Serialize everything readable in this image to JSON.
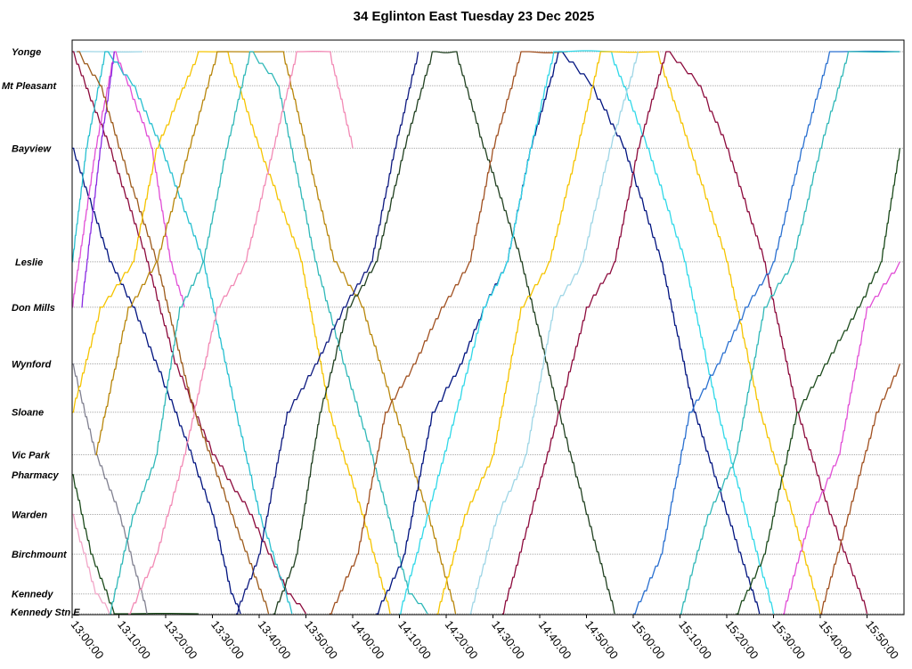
{
  "chart_data": {
    "type": "line",
    "title": "34 Eglinton East Tuesday 23 Dec 2025",
    "xlabel": "",
    "ylabel": "",
    "x_range": [
      "13:00:00",
      "15:57:00"
    ],
    "x_ticks": [
      "13:00:00",
      "13:10:00",
      "13:20:00",
      "13:30:00",
      "13:40:00",
      "13:50:00",
      "14:00:00",
      "14:10:00",
      "14:20:00",
      "14:30:00",
      "14:40:00",
      "14:50:00",
      "15:00:00",
      "15:10:00",
      "15:20:00",
      "15:30:00",
      "15:40:00",
      "15:50:00"
    ],
    "y_axis": "stop position along route (km from Yonge)",
    "grid": true,
    "legend": "none",
    "stops": [
      {
        "name": "Yonge",
        "pos": 0.8
      },
      {
        "name": "Mt Pleasant",
        "pos": 2.0
      },
      {
        "name": "Bayview",
        "pos": 4.2
      },
      {
        "name": "Leslie",
        "pos": 8.2
      },
      {
        "name": "Don Mills",
        "pos": 9.8
      },
      {
        "name": "Wynford",
        "pos": 11.8
      },
      {
        "name": "Sloane",
        "pos": 13.5
      },
      {
        "name": "Vic Park",
        "pos": 15.0
      },
      {
        "name": "Pharmacy",
        "pos": 15.7
      },
      {
        "name": "Warden",
        "pos": 17.1
      },
      {
        "name": "Birchmount",
        "pos": 18.5
      },
      {
        "name": "Kennedy",
        "pos": 19.9
      },
      {
        "name": "Kennedy Stn E",
        "pos": 20.6
      }
    ],
    "series": [
      {
        "color": "#00137f",
        "points": [
          [
            "13:00",
            "Bayview"
          ],
          [
            "13:08",
            "Leslie"
          ],
          [
            "13:13",
            "Don Mills"
          ],
          [
            "13:22",
            "Sloane"
          ],
          [
            "13:30",
            "Warden"
          ],
          [
            "13:34",
            "Kennedy"
          ],
          [
            "13:36",
            "Kennedy Stn E"
          ]
        ]
      },
      {
        "color": "#1b4a1b",
        "points": [
          [
            "13:00",
            "Pharmacy"
          ],
          [
            "13:04",
            "Birchmount"
          ],
          [
            "13:09",
            "Kennedy Stn E"
          ],
          [
            "13:27",
            "Kennedy Stn E"
          ]
        ]
      },
      {
        "color": "#f2a7c8",
        "points": [
          [
            "13:00",
            "Warden"
          ],
          [
            "13:05",
            "Kennedy"
          ],
          [
            "13:08",
            "Kennedy Stn E"
          ]
        ]
      },
      {
        "color": "#808090",
        "points": [
          [
            "13:00",
            "Wynford"
          ],
          [
            "13:05",
            "Vic Park"
          ],
          [
            "13:10",
            "Warden"
          ],
          [
            "13:16",
            "Kennedy Stn E"
          ]
        ]
      },
      {
        "color": "#9fd6e6",
        "points": [
          [
            "13:00",
            "Yonge"
          ],
          [
            "13:05",
            "Yonge"
          ],
          [
            "13:15",
            "Yonge"
          ]
        ]
      },
      {
        "color": "#8c0a3c",
        "points": [
          [
            "13:00",
            "Yonge"
          ],
          [
            "13:08",
            "Bayview"
          ],
          [
            "13:16",
            "Leslie"
          ],
          [
            "13:22",
            "Wynford"
          ],
          [
            "13:30",
            "Vic Park"
          ],
          [
            "13:38",
            "Warden"
          ],
          [
            "13:46",
            "Kennedy"
          ],
          [
            "13:50",
            "Kennedy Stn E"
          ]
        ]
      },
      {
        "color": "#e14fd6",
        "points": [
          [
            "13:00",
            "Don Mills"
          ],
          [
            "13:05",
            "Bayview"
          ],
          [
            "13:09",
            "Yonge"
          ],
          [
            "13:12",
            "Mt Pleasant"
          ],
          [
            "13:17",
            "Bayview"
          ],
          [
            "13:21",
            "Leslie"
          ],
          [
            "13:24",
            "Don Mills"
          ]
        ]
      },
      {
        "color": "#8a2be2",
        "points": [
          [
            "13:02",
            "Don Mills"
          ],
          [
            "13:06",
            "Bayview"
          ],
          [
            "13:09",
            "Yonge"
          ]
        ]
      },
      {
        "color": "#28c0d0",
        "points": [
          [
            "13:00",
            "Leslie"
          ],
          [
            "13:03",
            "Bayview"
          ],
          [
            "13:07",
            "Yonge"
          ],
          [
            "13:13",
            "Mt Pleasant"
          ],
          [
            "13:19",
            "Bayview"
          ],
          [
            "13:28",
            "Leslie"
          ],
          [
            "13:35",
            "Sloane"
          ],
          [
            "13:40",
            "Warden"
          ],
          [
            "13:47",
            "Kennedy Stn E"
          ]
        ]
      },
      {
        "color": "#9c5a1a",
        "points": [
          [
            "13:01",
            "Yonge"
          ],
          [
            "13:06",
            "Mt Pleasant"
          ],
          [
            "13:10",
            "Bayview"
          ],
          [
            "13:18",
            "Leslie"
          ],
          [
            "13:26",
            "Sloane"
          ],
          [
            "13:34",
            "Warden"
          ],
          [
            "13:42",
            "Kennedy Stn E"
          ]
        ]
      },
      {
        "color": "#f5c400",
        "points": [
          [
            "13:00",
            "Sloane"
          ],
          [
            "13:06",
            "Don Mills"
          ],
          [
            "13:13",
            "Leslie"
          ],
          [
            "13:18",
            "Bayview"
          ],
          [
            "13:27",
            "Yonge"
          ],
          [
            "13:33",
            "Yonge"
          ],
          [
            "13:40",
            "Bayview"
          ],
          [
            "13:49",
            "Leslie"
          ],
          [
            "13:55",
            "Sloane"
          ],
          [
            "14:02",
            "Warden"
          ],
          [
            "14:08",
            "Kennedy Stn E"
          ]
        ]
      },
      {
        "color": "#b8860b",
        "points": [
          [
            "13:05",
            "Vic Park"
          ],
          [
            "13:12",
            "Don Mills"
          ],
          [
            "13:18",
            "Leslie"
          ],
          [
            "13:25",
            "Bayview"
          ],
          [
            "13:31",
            "Yonge"
          ],
          [
            "13:45",
            "Yonge"
          ],
          [
            "13:50",
            "Bayview"
          ],
          [
            "13:56",
            "Leslie"
          ],
          [
            "14:02",
            "Don Mills"
          ],
          [
            "14:09",
            "Sloane"
          ],
          [
            "14:16",
            "Warden"
          ],
          [
            "14:22",
            "Kennedy Stn E"
          ]
        ]
      },
      {
        "color": "#30b8b8",
        "points": [
          [
            "13:08",
            "Kennedy Stn E"
          ],
          [
            "13:13",
            "Warden"
          ],
          [
            "13:18",
            "Vic Park"
          ],
          [
            "13:23",
            "Don Mills"
          ],
          [
            "13:28",
            "Leslie"
          ],
          [
            "13:33",
            "Bayview"
          ],
          [
            "13:38",
            "Yonge"
          ],
          [
            "13:44",
            "Mt Pleasant"
          ],
          [
            "13:52",
            "Leslie"
          ],
          [
            "13:58",
            "Wynford"
          ],
          [
            "14:04",
            "Vic Park"
          ],
          [
            "14:12",
            "Kennedy"
          ],
          [
            "14:16",
            "Kennedy Stn E"
          ]
        ]
      },
      {
        "color": "#f28ab5",
        "points": [
          [
            "13:12",
            "Kennedy Stn E"
          ],
          [
            "13:18",
            "Birchmount"
          ],
          [
            "13:24",
            "Vic Park"
          ],
          [
            "13:31",
            "Don Mills"
          ],
          [
            "13:37",
            "Leslie"
          ],
          [
            "13:43",
            "Bayview"
          ],
          [
            "13:48",
            "Yonge"
          ],
          [
            "13:55",
            "Yonge"
          ],
          [
            "14:00",
            "Bayview"
          ]
        ]
      },
      {
        "color": "#0e1a80",
        "points": [
          [
            "13:35",
            "Kennedy Stn E"
          ],
          [
            "13:40",
            "Birchmount"
          ],
          [
            "13:46",
            "Sloane"
          ],
          [
            "13:52",
            "Wynford"
          ],
          [
            "13:58",
            "Don Mills"
          ],
          [
            "14:04",
            "Leslie"
          ],
          [
            "14:09",
            "Bayview"
          ],
          [
            "14:14",
            "Yonge"
          ]
        ]
      },
      {
        "color": "#204020",
        "points": [
          [
            "13:43",
            "Kennedy Stn E"
          ],
          [
            "13:48",
            "Birchmount"
          ],
          [
            "13:53",
            "Sloane"
          ],
          [
            "13:59",
            "Don Mills"
          ],
          [
            "14:05",
            "Leslie"
          ],
          [
            "14:11",
            "Bayview"
          ],
          [
            "14:17",
            "Yonge"
          ],
          [
            "14:22",
            "Yonge"
          ],
          [
            "14:28",
            "Bayview"
          ],
          [
            "14:36",
            "Leslie"
          ],
          [
            "14:44",
            "Sloane"
          ],
          [
            "14:50",
            "Warden"
          ],
          [
            "14:56",
            "Kennedy Stn E"
          ]
        ]
      },
      {
        "color": "#a05020",
        "points": [
          [
            "13:55",
            "Kennedy Stn E"
          ],
          [
            "14:01",
            "Birchmount"
          ],
          [
            "14:07",
            "Sloane"
          ],
          [
            "14:13",
            "Wynford"
          ],
          [
            "14:19",
            "Don Mills"
          ],
          [
            "14:25",
            "Leslie"
          ],
          [
            "14:30",
            "Bayview"
          ],
          [
            "14:36",
            "Yonge"
          ],
          [
            "14:46",
            "Yonge"
          ]
        ]
      },
      {
        "color": "#00137f",
        "points": [
          [
            "14:05",
            "Kennedy Stn E"
          ],
          [
            "14:11",
            "Birchmount"
          ],
          [
            "14:17",
            "Sloane"
          ],
          [
            "14:23",
            "Wynford"
          ],
          [
            "14:28",
            "Don Mills"
          ],
          [
            "14:33",
            "Leslie"
          ],
          [
            "14:38",
            "Bayview"
          ],
          [
            "14:44",
            "Yonge"
          ],
          [
            "14:51",
            "Mt Pleasant"
          ],
          [
            "14:58",
            "Bayview"
          ],
          [
            "15:06",
            "Leslie"
          ],
          [
            "15:13",
            "Sloane"
          ],
          [
            "15:20",
            "Warden"
          ],
          [
            "15:27",
            "Kennedy Stn E"
          ]
        ]
      },
      {
        "color": "#2fd8e8",
        "points": [
          [
            "14:10",
            "Kennedy Stn E"
          ],
          [
            "14:16",
            "Warden"
          ],
          [
            "14:22",
            "Sloane"
          ],
          [
            "14:28",
            "Don Mills"
          ],
          [
            "14:33",
            "Leslie"
          ],
          [
            "14:38",
            "Bayview"
          ],
          [
            "14:43",
            "Yonge"
          ],
          [
            "14:55",
            "Yonge"
          ],
          [
            "15:03",
            "Bayview"
          ],
          [
            "15:11",
            "Leslie"
          ],
          [
            "15:18",
            "Sloane"
          ],
          [
            "15:24",
            "Warden"
          ],
          [
            "15:30",
            "Kennedy Stn E"
          ]
        ]
      },
      {
        "color": "#f5c400",
        "points": [
          [
            "14:18",
            "Kennedy Stn E"
          ],
          [
            "14:24",
            "Warden"
          ],
          [
            "14:30",
            "Vic Park"
          ],
          [
            "14:36",
            "Don Mills"
          ],
          [
            "14:42",
            "Leslie"
          ],
          [
            "14:48",
            "Bayview"
          ],
          [
            "14:53",
            "Yonge"
          ],
          [
            "15:05",
            "Yonge"
          ],
          [
            "15:12",
            "Bayview"
          ],
          [
            "15:20",
            "Leslie"
          ],
          [
            "15:27",
            "Sloane"
          ],
          [
            "15:34",
            "Warden"
          ],
          [
            "15:40",
            "Kennedy Stn E"
          ]
        ]
      },
      {
        "color": "#9fd6e6",
        "points": [
          [
            "14:25",
            "Kennedy Stn E"
          ],
          [
            "14:31",
            "Warden"
          ],
          [
            "14:37",
            "Vic Park"
          ],
          [
            "14:43",
            "Don Mills"
          ],
          [
            "14:49",
            "Leslie"
          ],
          [
            "14:55",
            "Bayview"
          ],
          [
            "15:01",
            "Yonge"
          ]
        ]
      },
      {
        "color": "#8c0a3c",
        "points": [
          [
            "14:32",
            "Kennedy Stn E"
          ],
          [
            "14:38",
            "Warden"
          ],
          [
            "14:44",
            "Sloane"
          ],
          [
            "14:50",
            "Don Mills"
          ],
          [
            "14:56",
            "Leslie"
          ],
          [
            "15:01",
            "Bayview"
          ],
          [
            "15:07",
            "Yonge"
          ],
          [
            "15:14",
            "Mt Pleasant"
          ],
          [
            "15:20",
            "Bayview"
          ],
          [
            "15:28",
            "Leslie"
          ],
          [
            "15:35",
            "Sloane"
          ],
          [
            "15:42",
            "Warden"
          ],
          [
            "15:50",
            "Kennedy Stn E"
          ]
        ]
      },
      {
        "color": "#2a70d0",
        "points": [
          [
            "15:00",
            "Kennedy Stn E"
          ],
          [
            "15:06",
            "Birchmount"
          ],
          [
            "15:12",
            "Sloane"
          ],
          [
            "15:18",
            "Wynford"
          ],
          [
            "15:24",
            "Don Mills"
          ],
          [
            "15:30",
            "Leslie"
          ],
          [
            "15:36",
            "Bayview"
          ],
          [
            "15:42",
            "Yonge"
          ],
          [
            "15:57",
            "Yonge"
          ]
        ]
      },
      {
        "color": "#30b8b8",
        "points": [
          [
            "15:10",
            "Kennedy Stn E"
          ],
          [
            "15:16",
            "Warden"
          ],
          [
            "15:22",
            "Vic Park"
          ],
          [
            "15:28",
            "Don Mills"
          ],
          [
            "15:34",
            "Leslie"
          ],
          [
            "15:40",
            "Bayview"
          ],
          [
            "15:46",
            "Yonge"
          ],
          [
            "15:57",
            "Yonge"
          ]
        ]
      },
      {
        "color": "#1b4a1b",
        "points": [
          [
            "15:22",
            "Kennedy Stn E"
          ],
          [
            "15:28",
            "Birchmount"
          ],
          [
            "15:35",
            "Sloane"
          ],
          [
            "15:41",
            "Wynford"
          ],
          [
            "15:48",
            "Don Mills"
          ],
          [
            "15:53",
            "Leslie"
          ],
          [
            "15:57",
            "Bayview"
          ]
        ]
      },
      {
        "color": "#e14fd6",
        "points": [
          [
            "15:32",
            "Kennedy Stn E"
          ],
          [
            "15:38",
            "Warden"
          ],
          [
            "15:44",
            "Vic Park"
          ],
          [
            "15:50",
            "Don Mills"
          ],
          [
            "15:57",
            "Leslie"
          ]
        ]
      },
      {
        "color": "#a05020",
        "points": [
          [
            "15:40",
            "Kennedy Stn E"
          ],
          [
            "15:46",
            "Warden"
          ],
          [
            "15:52",
            "Sloane"
          ],
          [
            "15:57",
            "Wynford"
          ]
        ]
      }
    ]
  }
}
